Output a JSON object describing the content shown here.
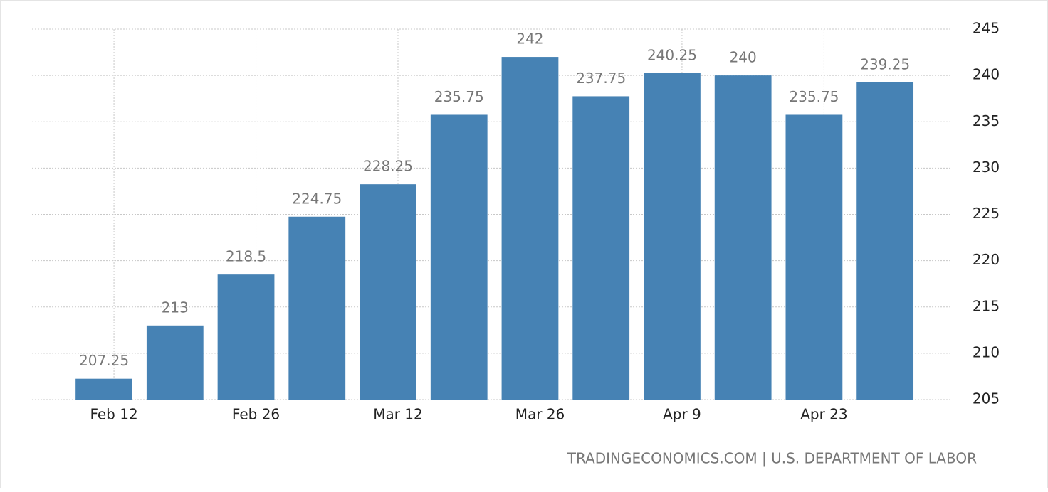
{
  "chart_data": {
    "type": "bar",
    "categories": [
      "Feb 12",
      null,
      "Feb 26",
      null,
      "Mar 12",
      null,
      "Mar 26",
      null,
      "Apr 9",
      null,
      "Apr 23",
      null
    ],
    "values": [
      207.25,
      213,
      218.5,
      224.75,
      228.25,
      235.75,
      242,
      237.75,
      240.25,
      240,
      235.75,
      239.25
    ],
    "color": "#4682b4",
    "ylim": [
      205,
      245
    ],
    "yticks": [
      205,
      210,
      215,
      220,
      225,
      230,
      235,
      240,
      245
    ],
    "grid": true,
    "y_axis_side": "right",
    "source": "TRADINGECONOMICS.COM | U.S. DEPARTMENT OF LABOR"
  }
}
